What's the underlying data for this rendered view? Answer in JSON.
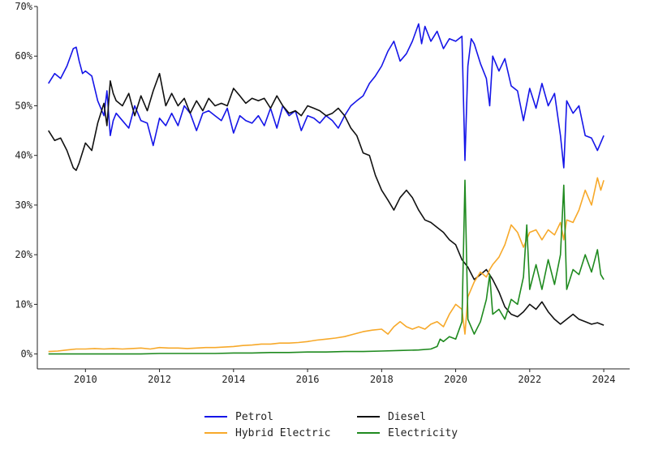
{
  "chart_data": {
    "type": "line",
    "xlim": [
      2008.7,
      2024.7
    ],
    "ylim": [
      -3,
      70
    ],
    "yticks": [
      0,
      10,
      20,
      30,
      40,
      50,
      60,
      70
    ],
    "ytick_labels": [
      "0%",
      "10%",
      "20%",
      "30%",
      "40%",
      "50%",
      "60%",
      "70%"
    ],
    "xticks": [
      2010,
      2012,
      2014,
      2016,
      2018,
      2020,
      2022,
      2024
    ],
    "xtick_labels": [
      "2010",
      "2012",
      "2014",
      "2016",
      "2018",
      "2020",
      "2022",
      "2024"
    ],
    "grid": false,
    "legend_placement": "bottom-center",
    "series": [
      {
        "name": "Petrol",
        "color": "#1515e8",
        "x": [
          2009.0,
          2009.17,
          2009.33,
          2009.5,
          2009.67,
          2009.75,
          2009.83,
          2009.92,
          2010.0,
          2010.17,
          2010.33,
          2010.5,
          2010.58,
          2010.67,
          2010.75,
          2010.83,
          2011.0,
          2011.17,
          2011.33,
          2011.5,
          2011.67,
          2011.83,
          2012.0,
          2012.17,
          2012.33,
          2012.5,
          2012.67,
          2012.83,
          2013.0,
          2013.17,
          2013.33,
          2013.5,
          2013.67,
          2013.83,
          2014.0,
          2014.17,
          2014.33,
          2014.5,
          2014.67,
          2014.83,
          2015.0,
          2015.17,
          2015.33,
          2015.5,
          2015.67,
          2015.83,
          2016.0,
          2016.17,
          2016.33,
          2016.5,
          2016.67,
          2016.83,
          2017.0,
          2017.17,
          2017.33,
          2017.5,
          2017.67,
          2017.83,
          2018.0,
          2018.17,
          2018.33,
          2018.5,
          2018.67,
          2018.83,
          2019.0,
          2019.08,
          2019.17,
          2019.33,
          2019.5,
          2019.67,
          2019.83,
          2020.0,
          2020.17,
          2020.25,
          2020.33,
          2020.42,
          2020.5,
          2020.67,
          2020.83,
          2020.92,
          2021.0,
          2021.17,
          2021.33,
          2021.5,
          2021.67,
          2021.83,
          2022.0,
          2022.17,
          2022.33,
          2022.5,
          2022.67,
          2022.83,
          2022.92,
          2023.0,
          2023.17,
          2023.33,
          2023.5,
          2023.67,
          2023.83,
          2024.0
        ],
        "y": [
          54.5,
          56.5,
          55.5,
          58.0,
          61.5,
          61.8,
          59.0,
          56.5,
          57.0,
          56.0,
          51.0,
          48.0,
          53.0,
          44.0,
          47.0,
          48.5,
          47.0,
          45.5,
          50.0,
          47.0,
          46.5,
          42.0,
          47.5,
          46.0,
          48.5,
          46.0,
          50.0,
          48.5,
          45.0,
          48.5,
          49.0,
          48.0,
          47.0,
          49.5,
          44.5,
          48.0,
          47.0,
          46.5,
          48.0,
          46.0,
          49.5,
          45.5,
          50.0,
          48.0,
          49.0,
          45.0,
          48.0,
          47.5,
          46.5,
          48.0,
          47.0,
          45.5,
          48.0,
          50.0,
          51.0,
          52.0,
          54.5,
          56.0,
          58.0,
          61.0,
          63.0,
          59.0,
          60.5,
          63.0,
          66.5,
          62.5,
          66.0,
          63.0,
          65.0,
          61.5,
          63.5,
          63.0,
          64.0,
          39.0,
          58.0,
          63.5,
          62.5,
          58.5,
          55.5,
          50.0,
          60.0,
          57.0,
          59.5,
          54.0,
          53.0,
          47.0,
          53.5,
          49.5,
          54.5,
          50.0,
          52.5,
          44.0,
          37.5,
          51.0,
          48.5,
          50.0,
          44.0,
          43.5,
          41.0,
          44.0
        ]
      },
      {
        "name": "Diesel",
        "color": "#111111",
        "x": [
          2009.0,
          2009.17,
          2009.33,
          2009.5,
          2009.67,
          2009.75,
          2009.83,
          2010.0,
          2010.17,
          2010.33,
          2010.5,
          2010.58,
          2010.67,
          2010.75,
          2010.83,
          2011.0,
          2011.17,
          2011.33,
          2011.5,
          2011.67,
          2011.83,
          2012.0,
          2012.17,
          2012.33,
          2012.5,
          2012.67,
          2012.83,
          2013.0,
          2013.17,
          2013.33,
          2013.5,
          2013.67,
          2013.83,
          2014.0,
          2014.17,
          2014.33,
          2014.5,
          2014.67,
          2014.83,
          2015.0,
          2015.17,
          2015.33,
          2015.5,
          2015.67,
          2015.83,
          2016.0,
          2016.17,
          2016.33,
          2016.5,
          2016.67,
          2016.83,
          2017.0,
          2017.17,
          2017.33,
          2017.5,
          2017.67,
          2017.83,
          2018.0,
          2018.17,
          2018.33,
          2018.5,
          2018.67,
          2018.83,
          2019.0,
          2019.17,
          2019.33,
          2019.5,
          2019.67,
          2019.83,
          2020.0,
          2020.17,
          2020.33,
          2020.5,
          2020.67,
          2020.83,
          2021.0,
          2021.17,
          2021.33,
          2021.5,
          2021.67,
          2021.83,
          2022.0,
          2022.17,
          2022.33,
          2022.5,
          2022.67,
          2022.83,
          2023.0,
          2023.17,
          2023.33,
          2023.5,
          2023.67,
          2023.83,
          2024.0
        ],
        "y": [
          45.0,
          43.0,
          43.5,
          41.0,
          37.5,
          37.0,
          38.5,
          42.5,
          41.0,
          46.5,
          50.5,
          46.0,
          55.0,
          52.5,
          51.0,
          50.0,
          52.5,
          48.0,
          52.0,
          49.0,
          53.0,
          56.5,
          50.0,
          52.5,
          50.0,
          51.5,
          48.5,
          51.0,
          49.0,
          51.5,
          50.0,
          50.5,
          50.0,
          53.5,
          52.0,
          50.5,
          51.5,
          51.0,
          51.5,
          49.5,
          52.0,
          50.0,
          48.5,
          49.0,
          48.0,
          50.0,
          49.5,
          49.0,
          48.0,
          48.5,
          49.5,
          48.0,
          45.5,
          44.0,
          40.5,
          40.0,
          36.0,
          33.0,
          31.0,
          29.0,
          31.5,
          33.0,
          31.5,
          29.0,
          27.0,
          26.5,
          25.5,
          24.5,
          23.0,
          22.0,
          19.0,
          17.5,
          15.0,
          16.0,
          17.0,
          15.0,
          12.5,
          9.5,
          8.0,
          7.5,
          8.5,
          10.0,
          9.0,
          10.5,
          8.5,
          7.0,
          6.0,
          7.0,
          8.0,
          7.0,
          6.5,
          6.0,
          6.3,
          5.8
        ]
      },
      {
        "name": "Hybrid Electric",
        "color": "#f7a92a",
        "x": [
          2009.0,
          2009.25,
          2009.5,
          2009.75,
          2010.0,
          2010.25,
          2010.5,
          2010.75,
          2011.0,
          2011.25,
          2011.5,
          2011.75,
          2012.0,
          2012.25,
          2012.5,
          2012.75,
          2013.0,
          2013.25,
          2013.5,
          2013.75,
          2014.0,
          2014.25,
          2014.5,
          2014.75,
          2015.0,
          2015.25,
          2015.5,
          2015.75,
          2016.0,
          2016.25,
          2016.5,
          2016.75,
          2017.0,
          2017.25,
          2017.5,
          2017.75,
          2018.0,
          2018.17,
          2018.33,
          2018.5,
          2018.67,
          2018.83,
          2019.0,
          2019.17,
          2019.33,
          2019.5,
          2019.67,
          2019.83,
          2020.0,
          2020.17,
          2020.25,
          2020.33,
          2020.5,
          2020.67,
          2020.83,
          2020.92,
          2021.0,
          2021.17,
          2021.33,
          2021.5,
          2021.67,
          2021.83,
          2022.0,
          2022.17,
          2022.33,
          2022.5,
          2022.67,
          2022.83,
          2022.92,
          2023.0,
          2023.17,
          2023.33,
          2023.5,
          2023.67,
          2023.83,
          2023.92,
          2024.0
        ],
        "y": [
          0.5,
          0.6,
          0.8,
          1.0,
          1.0,
          1.1,
          1.0,
          1.1,
          1.0,
          1.1,
          1.2,
          1.0,
          1.3,
          1.2,
          1.2,
          1.1,
          1.2,
          1.3,
          1.3,
          1.4,
          1.5,
          1.7,
          1.8,
          2.0,
          2.0,
          2.2,
          2.2,
          2.3,
          2.5,
          2.8,
          3.0,
          3.2,
          3.5,
          4.0,
          4.5,
          4.8,
          5.0,
          4.0,
          5.5,
          6.5,
          5.5,
          5.0,
          5.5,
          5.0,
          6.0,
          6.5,
          5.5,
          8.0,
          10.0,
          9.0,
          4.0,
          11.5,
          14.5,
          16.5,
          15.5,
          17.0,
          18.0,
          19.5,
          22.0,
          26.0,
          24.5,
          21.5,
          24.5,
          25.0,
          23.0,
          25.0,
          24.0,
          26.5,
          23.0,
          27.0,
          26.5,
          29.0,
          33.0,
          30.0,
          35.5,
          33.0,
          35.0
        ]
      },
      {
        "name": "Electricity",
        "color": "#1f8a1f",
        "x": [
          2009.0,
          2009.5,
          2010.0,
          2010.5,
          2011.0,
          2011.5,
          2012.0,
          2012.5,
          2013.0,
          2013.5,
          2014.0,
          2014.5,
          2015.0,
          2015.5,
          2016.0,
          2016.5,
          2017.0,
          2017.5,
          2018.0,
          2018.5,
          2019.0,
          2019.33,
          2019.5,
          2019.58,
          2019.67,
          2019.83,
          2020.0,
          2020.17,
          2020.25,
          2020.33,
          2020.5,
          2020.67,
          2020.83,
          2020.92,
          2021.0,
          2021.17,
          2021.33,
          2021.5,
          2021.67,
          2021.83,
          2021.92,
          2022.0,
          2022.17,
          2022.33,
          2022.5,
          2022.67,
          2022.83,
          2022.92,
          2023.0,
          2023.17,
          2023.33,
          2023.5,
          2023.67,
          2023.83,
          2023.92,
          2024.0
        ],
        "y": [
          0.0,
          0.0,
          0.0,
          0.0,
          0.0,
          0.0,
          0.1,
          0.1,
          0.1,
          0.1,
          0.2,
          0.2,
          0.3,
          0.3,
          0.4,
          0.4,
          0.5,
          0.5,
          0.6,
          0.7,
          0.8,
          1.0,
          1.5,
          3.0,
          2.5,
          3.5,
          3.0,
          6.5,
          35.0,
          7.0,
          4.0,
          6.5,
          11.0,
          16.0,
          8.0,
          9.0,
          7.0,
          11.0,
          10.0,
          15.5,
          26.0,
          13.0,
          18.0,
          13.0,
          19.0,
          14.0,
          20.0,
          34.0,
          13.0,
          17.0,
          16.0,
          20.0,
          16.5,
          21.0,
          16.0,
          15.0
        ]
      }
    ],
    "legend": [
      {
        "label": "Petrol",
        "color": "#1515e8"
      },
      {
        "label": "Diesel",
        "color": "#111111"
      },
      {
        "label": "Hybrid Electric",
        "color": "#f7a92a"
      },
      {
        "label": "Electricity",
        "color": "#1f8a1f"
      }
    ]
  }
}
